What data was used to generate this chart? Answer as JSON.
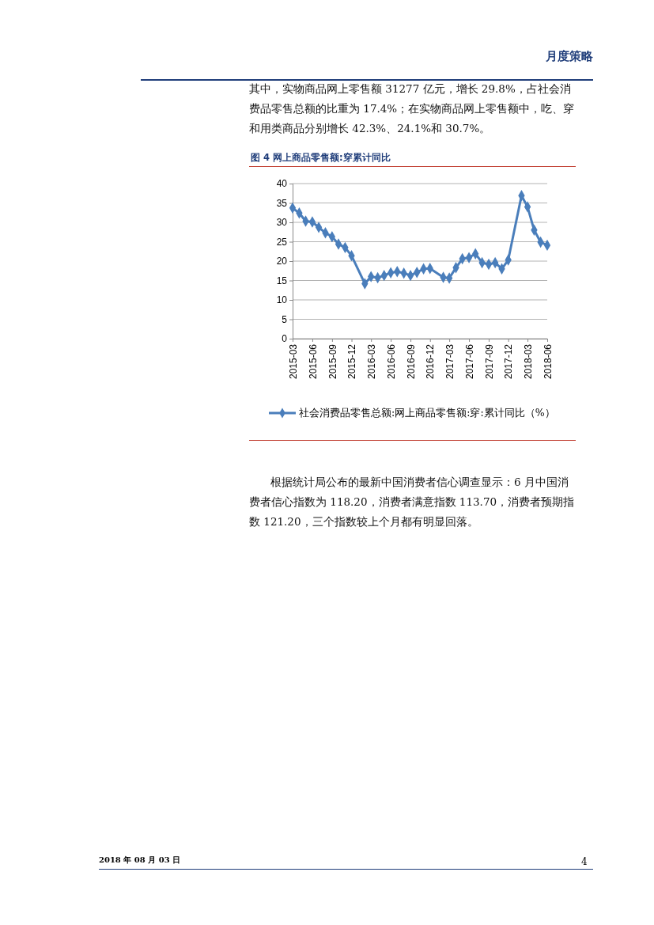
{
  "chart_data": {
    "type": "line",
    "title": "图 4 网上商品零售额:穿累计同比",
    "x": [
      "2015-03",
      "2015-04",
      "2015-05",
      "2015-06",
      "2015-07",
      "2015-08",
      "2015-09",
      "2015-10",
      "2015-11",
      "2015-12",
      "2016-02",
      "2016-03",
      "2016-04",
      "2016-05",
      "2016-06",
      "2016-07",
      "2016-08",
      "2016-09",
      "2016-10",
      "2016-11",
      "2016-12",
      "2017-02",
      "2017-03",
      "2017-04",
      "2017-05",
      "2017-06",
      "2017-07",
      "2017-08",
      "2017-09",
      "2017-10",
      "2017-11",
      "2017-12",
      "2018-02",
      "2018-03",
      "2018-04",
      "2018-05",
      "2018-06"
    ],
    "series": [
      {
        "name": "社会消费品零售总额:网上商品零售额:穿:累计同比（%）",
        "color": "#4a7ebb",
        "values": [
          33.7,
          32.4,
          30.3,
          30.1,
          28.7,
          27.3,
          26.3,
          24.4,
          23.5,
          21.4,
          14.2,
          16.0,
          15.7,
          16.3,
          17.0,
          17.3,
          16.9,
          16.3,
          17.1,
          18.0,
          18.1,
          15.8,
          15.6,
          18.3,
          20.6,
          20.9,
          21.9,
          19.6,
          19.2,
          19.6,
          18.0,
          20.3,
          36.9,
          34.0,
          28.0,
          24.9,
          24.1
        ]
      }
    ],
    "xlim": [
      "2015-03",
      "2018-06"
    ],
    "xticks": [
      "2015-03",
      "2015-06",
      "2015-09",
      "2015-12",
      "2016-03",
      "2016-06",
      "2016-09",
      "2016-12",
      "2017-03",
      "2017-06",
      "2017-09",
      "2017-12",
      "2018-03",
      "2018-06"
    ],
    "ylim": [
      0,
      40
    ],
    "yticks": [
      0,
      5,
      10,
      15,
      20,
      25,
      30,
      35,
      40
    ],
    "grid": "y",
    "legend": "bottom",
    "marker": "diamond",
    "line_style": "solid",
    "annotations": [
      "月度策略",
      "其中，实物商品网上零售额 31277 亿元，增长 29.8%，占社会消费品零售总额的比重为 17.4%；在实物商品网上零售额中，吃、穿和用类商品分别增长 42.3%、24.1%和 30.7%。",
      "根据统计局公布的最新中国消费者信心调查显示：6 月中国消费者信心指数为 118.20，消费者满意指数 113.70，消费者预期指数 121.20，三个指数较上个月都有明显回落。",
      "2018 年 08 月 03 日",
      "4"
    ]
  }
}
